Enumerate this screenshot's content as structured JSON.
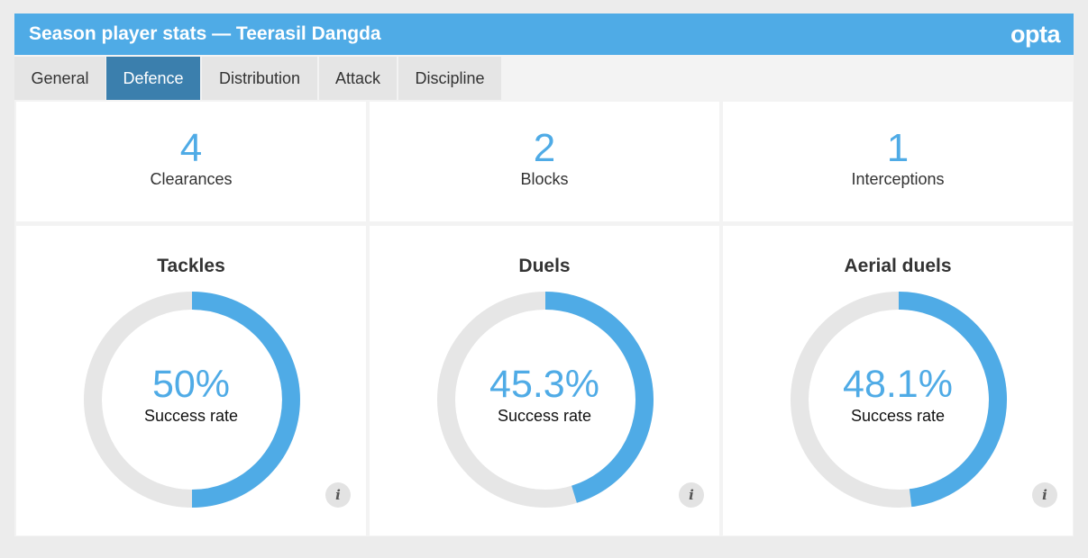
{
  "header": {
    "title": "Season player stats — Teerasil Dangda",
    "logo_text": "opta",
    "color": "#4fabe6"
  },
  "tabs": [
    {
      "label": "General",
      "active": false
    },
    {
      "label": "Defence",
      "active": true
    },
    {
      "label": "Distribution",
      "active": false
    },
    {
      "label": "Attack",
      "active": false
    },
    {
      "label": "Discipline",
      "active": false
    }
  ],
  "stats": [
    {
      "value": "4",
      "label": "Clearances"
    },
    {
      "value": "2",
      "label": "Blocks"
    },
    {
      "value": "1",
      "label": "Interceptions"
    }
  ],
  "gauges": [
    {
      "title": "Tackles",
      "display": "50%",
      "fraction": 0.5,
      "subtitle": "Success rate",
      "info_icon": "info-icon"
    },
    {
      "title": "Duels",
      "display": "45.3%",
      "fraction": 0.453,
      "subtitle": "Success rate",
      "info_icon": "info-icon"
    },
    {
      "title": "Aerial duels",
      "display": "48.1%",
      "fraction": 0.481,
      "subtitle": "Success rate",
      "info_icon": "info-icon"
    }
  ],
  "colors": {
    "accent": "#4fabe6",
    "track": "#e6e6e6",
    "tab_active": "#3b7fad"
  }
}
